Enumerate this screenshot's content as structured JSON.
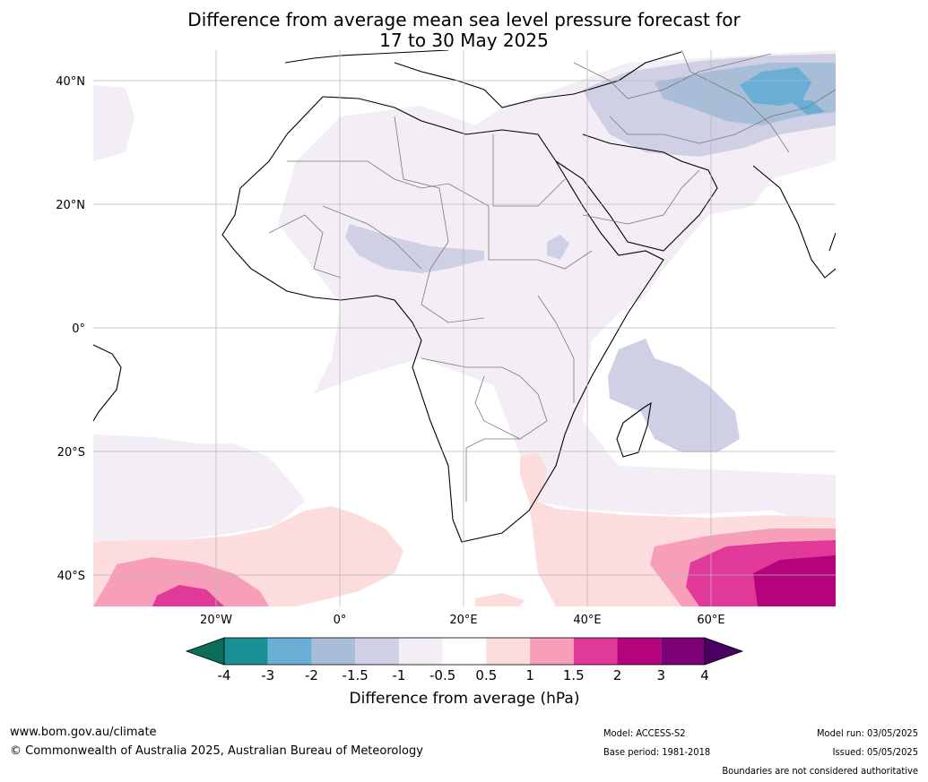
{
  "title": {
    "line1": "Difference from average mean sea level pressure forecast for",
    "line2": "17 to 30 May 2025"
  },
  "map": {
    "lat_labels": [
      "40°N",
      "20°N",
      "0°",
      "20°S",
      "40°S"
    ],
    "lat_values": [
      40,
      20,
      0,
      -20,
      -40
    ],
    "lon_labels": [
      "20°W",
      "0°",
      "20°E",
      "40°E",
      "60°E"
    ],
    "lon_values": [
      -20,
      0,
      20,
      40,
      60
    ],
    "extent": {
      "lon_min": -40,
      "lon_max": 80,
      "lat_min": -45,
      "lat_max": 45
    }
  },
  "colorbar": {
    "label": "Difference from average (hPa)",
    "ticks": [
      "-4",
      "-3",
      "-2",
      "-1.5",
      "-1",
      "-0.5",
      "0.5",
      "1",
      "1.5",
      "2",
      "3",
      "4"
    ],
    "colors": [
      "#1a8f94",
      "#6aadd5",
      "#a8bdd8",
      "#cfd0e5",
      "#f3edf5",
      "#ffffff",
      "#fcdcdc",
      "#f79fb8",
      "#e0399a",
      "#b4037c",
      "#7c0076"
    ],
    "extend_low_color": "#0b6e59",
    "extend_high_color": "#4a0060"
  },
  "footer": {
    "url": "www.bom.gov.au/climate",
    "copyright": "© Commonwealth of Australia 2025, Australian Bureau of Meteorology",
    "model": "Model: ACCESS-S2",
    "base_period": "Base period: 1981-2018",
    "model_run": "Model run: 03/05/2025",
    "issued": "Issued: 05/05/2025",
    "disclaimer": "Boundaries are not considered authoritative"
  }
}
